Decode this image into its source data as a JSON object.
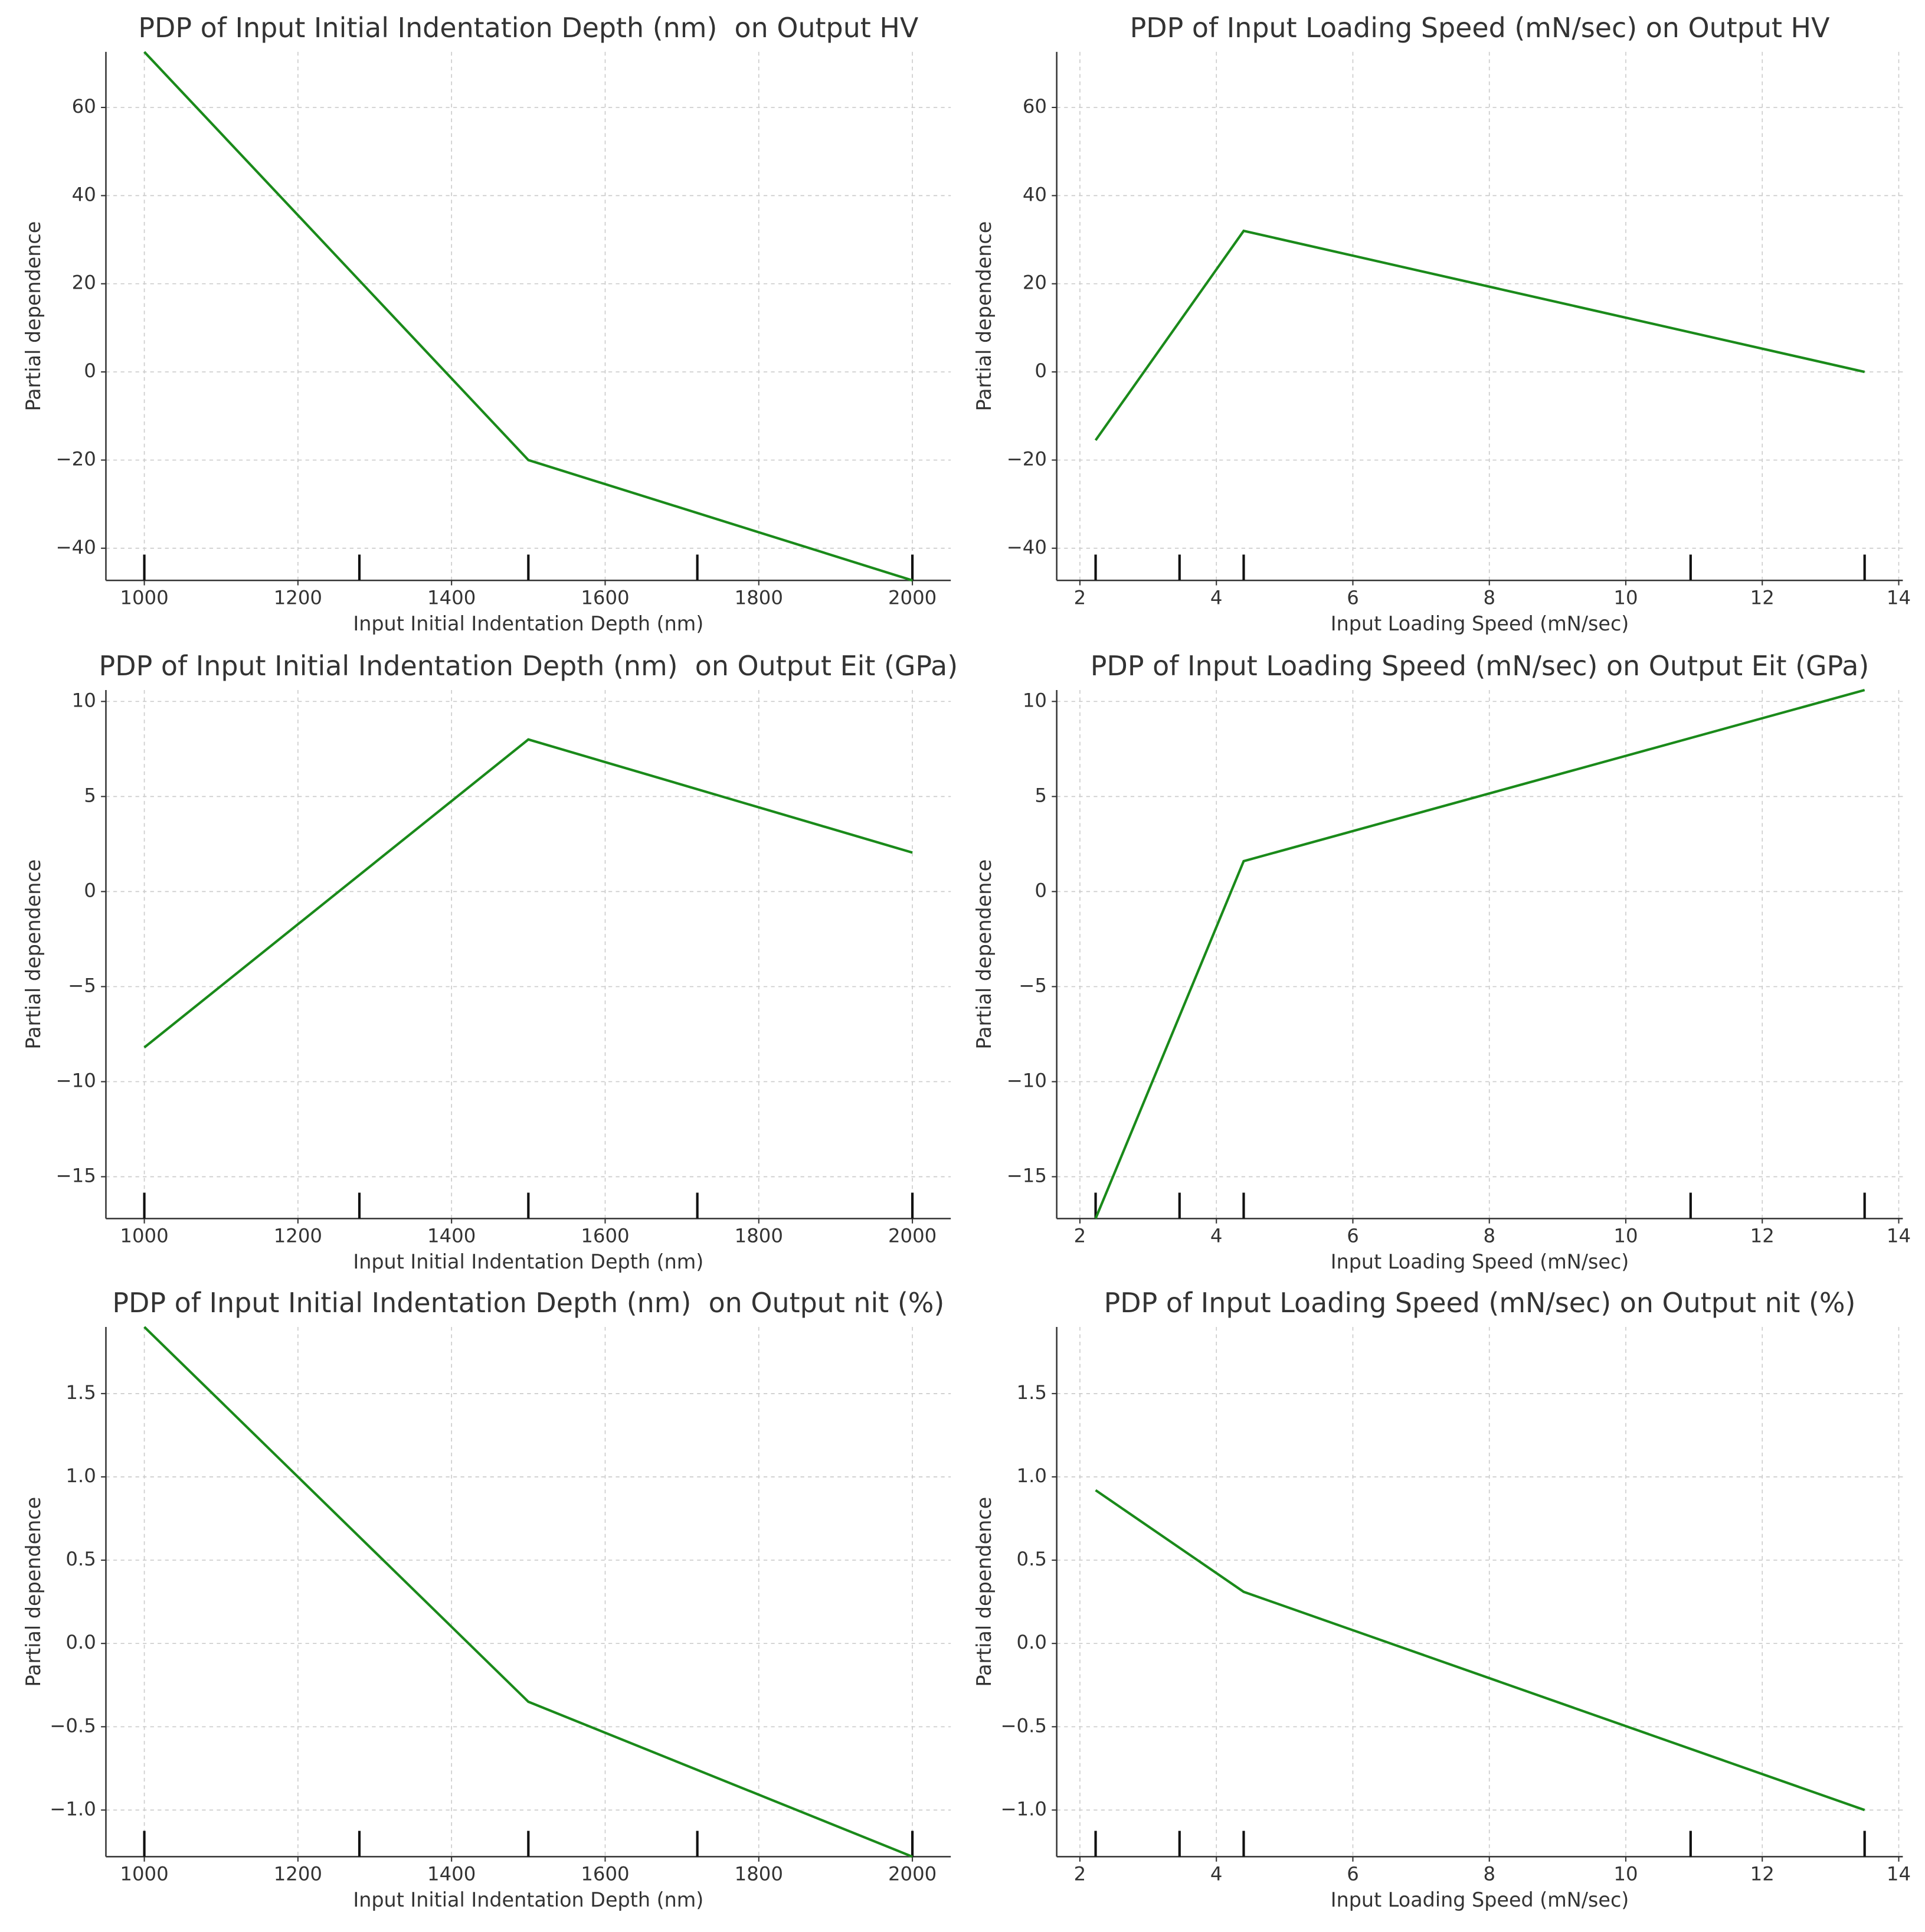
{
  "chart_data": [
    {
      "type": "line",
      "title": "PDP of Input Initial Indentation Depth (nm)  on Output HV",
      "xlabel": "Input Initial Indentation Depth (nm)",
      "ylabel": "Partial dependence",
      "x": [
        1000,
        1500,
        2000
      ],
      "values": [
        72.6,
        -20,
        -47.3
      ],
      "color": "#1a8a1a",
      "rug": [
        1000,
        1280,
        1500,
        1720,
        2000
      ],
      "xlim": [
        950,
        2050
      ],
      "xticks": [
        1000,
        1200,
        1400,
        1600,
        1800,
        2000
      ],
      "ylim": [
        -47.3,
        72.6
      ],
      "yticks": [
        {
          "value": -40,
          "label": "−40"
        },
        {
          "value": -20,
          "label": "−20"
        },
        0,
        20,
        40,
        60
      ],
      "grid": true
    },
    {
      "type": "line",
      "title": "PDP of Input Loading Speed (mN/sec) on Output HV",
      "xlabel": "Input Loading Speed (mN/sec)",
      "ylabel": "Partial dependence",
      "x": [
        2.23,
        4.4,
        13.5
      ],
      "values": [
        -15.5,
        32,
        0
      ],
      "color": "#1a8a1a",
      "rug": [
        2.23,
        3.46,
        4.4,
        10.95,
        13.5
      ],
      "xlim": [
        1.66,
        14.06
      ],
      "xticks": [
        2,
        4,
        6,
        8,
        10,
        12,
        14
      ],
      "ylim": [
        -47.3,
        72.6
      ],
      "yticks": [
        {
          "value": -40,
          "label": "−40"
        },
        {
          "value": -20,
          "label": "−20"
        },
        0,
        20,
        40,
        60
      ],
      "grid": true
    },
    {
      "type": "line",
      "title": "PDP of Input Initial Indentation Depth (nm)  on Output Eit (GPa)",
      "xlabel": "Input Initial Indentation Depth (nm)",
      "ylabel": "Partial dependence",
      "x": [
        1000,
        1500,
        2000
      ],
      "values": [
        -8.2,
        8,
        2.05
      ],
      "color": "#1a8a1a",
      "rug": [
        1000,
        1280,
        1500,
        1720,
        2000
      ],
      "xlim": [
        950,
        2050
      ],
      "xticks": [
        1000,
        1200,
        1400,
        1600,
        1800,
        2000
      ],
      "ylim": [
        -17.2,
        10.6
      ],
      "yticks": [
        {
          "value": -15,
          "label": "−15"
        },
        {
          "value": -10,
          "label": "−10"
        },
        {
          "value": -5,
          "label": "−5"
        },
        0,
        5,
        10
      ],
      "grid": true
    },
    {
      "type": "line",
      "title": "PDP of Input Loading Speed (mN/sec) on Output Eit (GPa)",
      "xlabel": "Input Loading Speed (mN/sec)",
      "ylabel": "Partial dependence",
      "x": [
        2.23,
        4.4,
        13.5
      ],
      "values": [
        -17.2,
        1.6,
        10.6
      ],
      "color": "#1a8a1a",
      "rug": [
        2.23,
        3.46,
        4.4,
        10.95,
        13.5
      ],
      "xlim": [
        1.66,
        14.06
      ],
      "xticks": [
        2,
        4,
        6,
        8,
        10,
        12,
        14
      ],
      "ylim": [
        -17.2,
        10.6
      ],
      "yticks": [
        {
          "value": -15,
          "label": "−15"
        },
        {
          "value": -10,
          "label": "−10"
        },
        {
          "value": -5,
          "label": "−5"
        },
        0,
        5,
        10
      ],
      "grid": true
    },
    {
      "type": "line",
      "title": "PDP of Input Initial Indentation Depth (nm)  on Output nit (%)",
      "xlabel": "Input Initial Indentation Depth (nm)",
      "ylabel": "Partial dependence",
      "x": [
        1000,
        1500,
        2000
      ],
      "values": [
        1.9,
        -0.35,
        -1.28
      ],
      "color": "#1a8a1a",
      "rug": [
        1000,
        1280,
        1500,
        1720,
        2000
      ],
      "xlim": [
        950,
        2050
      ],
      "xticks": [
        1000,
        1200,
        1400,
        1600,
        1800,
        2000
      ],
      "ylim": [
        -1.28,
        1.9
      ],
      "yticks": [
        {
          "value": -1,
          "label": "−1.0"
        },
        {
          "value": -0.5,
          "label": "−0.5"
        },
        {
          "value": 0,
          "label": "0.0"
        },
        0.5,
        {
          "value": 1,
          "label": "1.0"
        },
        1.5
      ],
      "grid": true
    },
    {
      "type": "line",
      "title": "PDP of Input Loading Speed (mN/sec) on Output nit (%)",
      "xlabel": "Input Loading Speed (mN/sec)",
      "ylabel": "Partial dependence",
      "x": [
        2.23,
        4.4,
        13.5
      ],
      "values": [
        0.92,
        0.31,
        -1.0
      ],
      "color": "#1a8a1a",
      "rug": [
        2.23,
        3.46,
        4.4,
        10.95,
        13.5
      ],
      "xlim": [
        1.66,
        14.06
      ],
      "xticks": [
        2,
        4,
        6,
        8,
        10,
        12,
        14
      ],
      "ylim": [
        -1.28,
        1.9
      ],
      "yticks": [
        {
          "value": -1,
          "label": "−1.0"
        },
        {
          "value": -0.5,
          "label": "−0.5"
        },
        {
          "value": 0,
          "label": "0.0"
        },
        0.5,
        {
          "value": 1,
          "label": "1.0"
        },
        1.5
      ],
      "grid": true
    }
  ]
}
